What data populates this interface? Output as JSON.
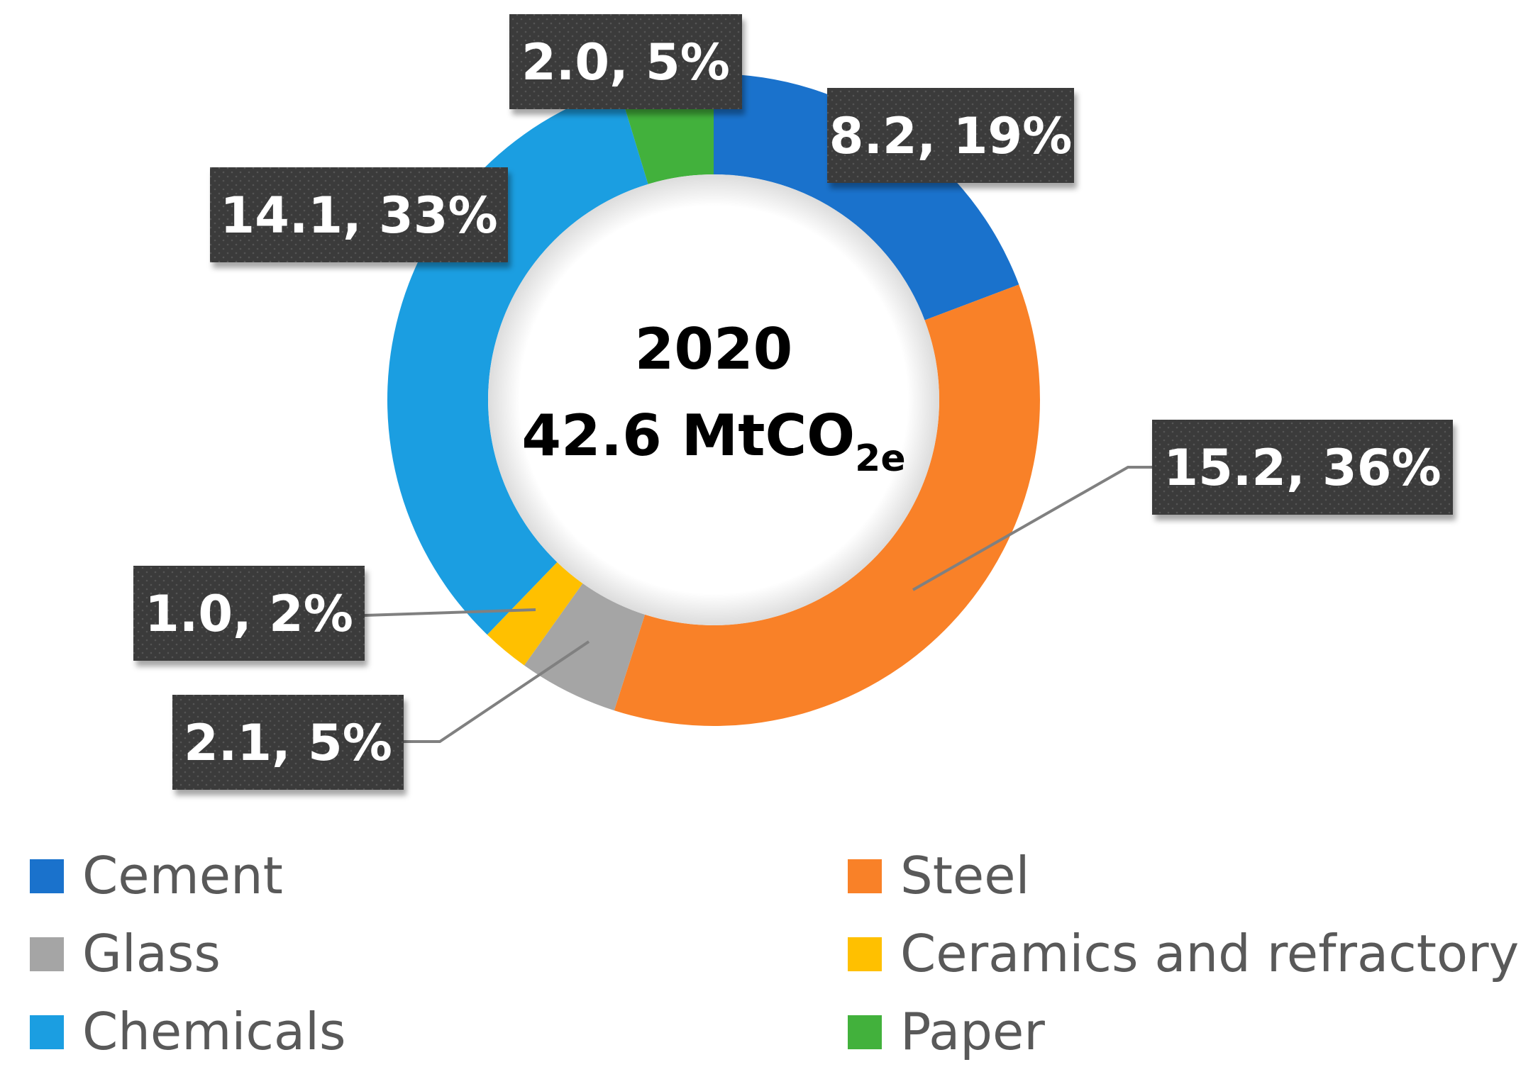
{
  "chart_data": {
    "type": "pie",
    "variant": "donut",
    "title": "2020",
    "total_label": {
      "prefix": "42.6 MtCO",
      "subscript": "2e"
    },
    "units": "MtCO2e",
    "slices": [
      {
        "name": "Cement",
        "value": 8.2,
        "percent": 19,
        "label": "8.2, 19%",
        "color": "#1a72cc"
      },
      {
        "name": "Steel",
        "value": 15.2,
        "percent": 36,
        "label": "15.2, 36%",
        "color": "#f98128"
      },
      {
        "name": "Glass",
        "value": 2.1,
        "percent": 5,
        "label": "2.1, 5%",
        "color": "#a5a5a5"
      },
      {
        "name": "Ceramics and refractory",
        "value": 1.0,
        "percent": 2,
        "label": "1.0, 2%",
        "color": "#ffc000"
      },
      {
        "name": "Chemicals",
        "value": 14.1,
        "percent": 33,
        "label": "14.1, 33%",
        "color": "#1b9ee1"
      },
      {
        "name": "Paper",
        "value": 2.0,
        "percent": 5,
        "label": "2.0, 5%",
        "color": "#42b13c"
      }
    ],
    "legend": {
      "placement": "bottom",
      "order": [
        "Cement",
        "Steel",
        "Glass",
        "Ceramics and refractory",
        "Chemicals",
        "Paper"
      ]
    },
    "label_box_color": "#3a3a3a",
    "leader_line_color": "#808080"
  }
}
